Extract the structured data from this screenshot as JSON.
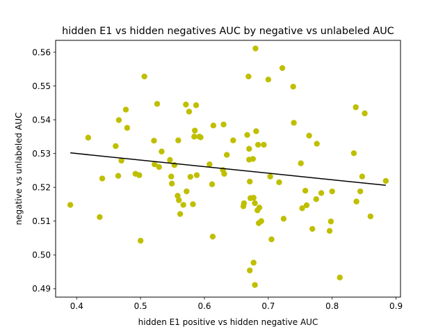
{
  "chart_data": {
    "type": "scatter",
    "title": "hidden E1 vs hidden negatives AUC by negative vs unlabeled AUC",
    "xlabel": "hidden E1 positive vs hidden negative  AUC",
    "ylabel": "negative vs unlabeled AUC",
    "xlim": [
      0.367,
      0.907
    ],
    "ylim": [
      0.4875,
      0.5635
    ],
    "xticks": [
      0.4,
      0.5,
      0.6,
      0.7,
      0.8,
      0.9
    ],
    "xtick_labels": [
      "0.4",
      "0.5",
      "0.6",
      "0.7",
      "0.8",
      "0.9"
    ],
    "yticks": [
      0.49,
      0.5,
      0.51,
      0.52,
      0.53,
      0.54,
      0.55,
      0.56
    ],
    "ytick_labels": [
      "0.49",
      "0.50",
      "0.51",
      "0.52",
      "0.53",
      "0.54",
      "0.55",
      "0.56"
    ],
    "grid": false,
    "point_color": "#bfbf00",
    "line_color": "#000000",
    "points": [
      [
        0.39,
        0.5148
      ],
      [
        0.418,
        0.5347
      ],
      [
        0.436,
        0.5112
      ],
      [
        0.44,
        0.5226
      ],
      [
        0.461,
        0.5322
      ],
      [
        0.465,
        0.5234
      ],
      [
        0.466,
        0.5399
      ],
      [
        0.47,
        0.5279
      ],
      [
        0.477,
        0.543
      ],
      [
        0.479,
        0.5376
      ],
      [
        0.492,
        0.524
      ],
      [
        0.498,
        0.5236
      ],
      [
        0.5,
        0.5042
      ],
      [
        0.506,
        0.5528
      ],
      [
        0.521,
        0.5338
      ],
      [
        0.522,
        0.5268
      ],
      [
        0.526,
        0.5447
      ],
      [
        0.529,
        0.526
      ],
      [
        0.533,
        0.5306
      ],
      [
        0.546,
        0.5281
      ],
      [
        0.548,
        0.5232
      ],
      [
        0.549,
        0.5211
      ],
      [
        0.553,
        0.5266
      ],
      [
        0.558,
        0.5175
      ],
      [
        0.559,
        0.5339
      ],
      [
        0.56,
        0.5162
      ],
      [
        0.562,
        0.5121
      ],
      [
        0.567,
        0.5148
      ],
      [
        0.571,
        0.5445
      ],
      [
        0.572,
        0.5188
      ],
      [
        0.576,
        0.5424
      ],
      [
        0.578,
        0.5231
      ],
      [
        0.582,
        0.515
      ],
      [
        0.584,
        0.535
      ],
      [
        0.585,
        0.5368
      ],
      [
        0.587,
        0.5443
      ],
      [
        0.588,
        0.5236
      ],
      [
        0.592,
        0.535
      ],
      [
        0.594,
        0.5348
      ],
      [
        0.608,
        0.5268
      ],
      [
        0.612,
        0.5209
      ],
      [
        0.613,
        0.5054
      ],
      [
        0.614,
        0.5383
      ],
      [
        0.629,
        0.5251
      ],
      [
        0.63,
        0.5386
      ],
      [
        0.631,
        0.524
      ],
      [
        0.635,
        0.5296
      ],
      [
        0.645,
        0.5339
      ],
      [
        0.661,
        0.5144
      ],
      [
        0.662,
        0.5153
      ],
      [
        0.667,
        0.5355
      ],
      [
        0.669,
        0.5528
      ],
      [
        0.67,
        0.5282
      ],
      [
        0.67,
        0.5314
      ],
      [
        0.671,
        0.5217
      ],
      [
        0.671,
        0.4954
      ],
      [
        0.672,
        0.5168
      ],
      [
        0.676,
        0.5284
      ],
      [
        0.677,
        0.4977
      ],
      [
        0.677,
        0.5169
      ],
      [
        0.679,
        0.5153
      ],
      [
        0.679,
        0.4911
      ],
      [
        0.68,
        0.5611
      ],
      [
        0.681,
        0.5366
      ],
      [
        0.683,
        0.5132
      ],
      [
        0.684,
        0.5326
      ],
      [
        0.685,
        0.5094
      ],
      [
        0.686,
        0.514
      ],
      [
        0.689,
        0.51
      ],
      [
        0.693,
        0.5326
      ],
      [
        0.7,
        0.5519
      ],
      [
        0.703,
        0.5232
      ],
      [
        0.705,
        0.5046
      ],
      [
        0.717,
        0.5215
      ],
      [
        0.722,
        0.5553
      ],
      [
        0.724,
        0.5107
      ],
      [
        0.739,
        0.5498
      ],
      [
        0.74,
        0.5391
      ],
      [
        0.751,
        0.5271
      ],
      [
        0.753,
        0.5138
      ],
      [
        0.758,
        0.519
      ],
      [
        0.76,
        0.5147
      ],
      [
        0.764,
        0.5353
      ],
      [
        0.769,
        0.5077
      ],
      [
        0.775,
        0.5165
      ],
      [
        0.776,
        0.5329
      ],
      [
        0.783,
        0.5183
      ],
      [
        0.796,
        0.5071
      ],
      [
        0.798,
        0.5099
      ],
      [
        0.8,
        0.5188
      ],
      [
        0.812,
        0.4933
      ],
      [
        0.834,
        0.5301
      ],
      [
        0.837,
        0.5437
      ],
      [
        0.838,
        0.5158
      ],
      [
        0.844,
        0.5188
      ],
      [
        0.847,
        0.5232
      ],
      [
        0.851,
        0.5419
      ],
      [
        0.86,
        0.5114
      ],
      [
        0.884,
        0.5219
      ]
    ],
    "trend_line": {
      "x": [
        0.39,
        0.884
      ],
      "y": [
        0.5302,
        0.5206
      ]
    }
  }
}
